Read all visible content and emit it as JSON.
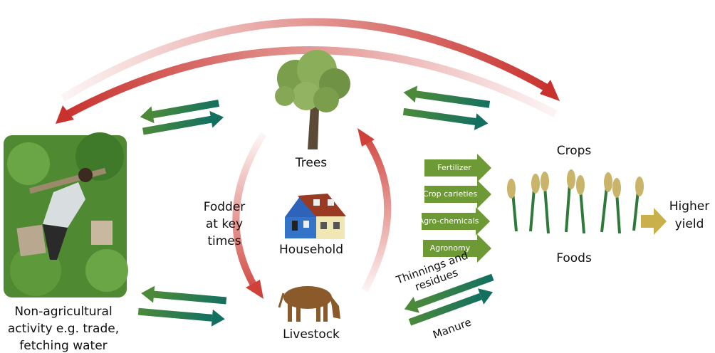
{
  "nodes": {
    "trees": "Trees",
    "household": "Household",
    "livestock": "Livestock",
    "crops": "Crops",
    "foods": "Foods",
    "higher_yield": [
      "Higher",
      "yield"
    ],
    "non_agricultural": [
      "Non-agricultural",
      "activity e.g. trade,",
      "fetching water"
    ]
  },
  "labels": {
    "fodder": [
      "Fodder",
      "at key",
      "times"
    ],
    "inputs": [
      "Fertilizer",
      "Crop carieties",
      "Agro-chemicals",
      "Agronomy"
    ],
    "thinnings": [
      "Thinnings and",
      "residues"
    ],
    "manure": "Manure"
  }
}
